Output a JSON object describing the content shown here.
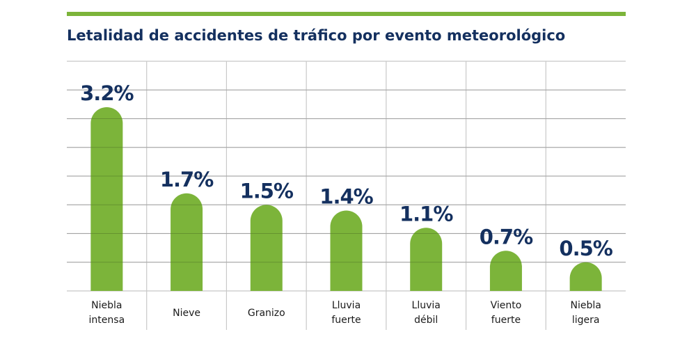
{
  "chart_data": {
    "type": "bar",
    "title": "Letalidad de accidentes de tráfico por evento meteorológico",
    "categories": [
      [
        "Niebla",
        "intensa"
      ],
      [
        "Nieve"
      ],
      [
        "Granizo"
      ],
      [
        "Lluvia",
        "fuerte"
      ],
      [
        "Lluvia",
        "débil"
      ],
      [
        "Viento",
        "fuerte"
      ],
      [
        "Niebla",
        "ligera"
      ]
    ],
    "values": [
      3.2,
      1.7,
      1.5,
      1.4,
      1.1,
      0.7,
      0.5
    ],
    "data_labels": [
      "3.2%",
      "1.7%",
      "1.5%",
      "1.4%",
      "1.1%",
      "0.7%",
      "0.5%"
    ],
    "xlabel": "",
    "ylabel": "",
    "ylim": [
      0,
      4
    ],
    "grid_step": 0.5,
    "grid": true,
    "colors": {
      "bar": "#7cb43a",
      "accent_rule": "#7cb43a",
      "text": "#14305f",
      "grid": "#c8c8c8"
    }
  }
}
